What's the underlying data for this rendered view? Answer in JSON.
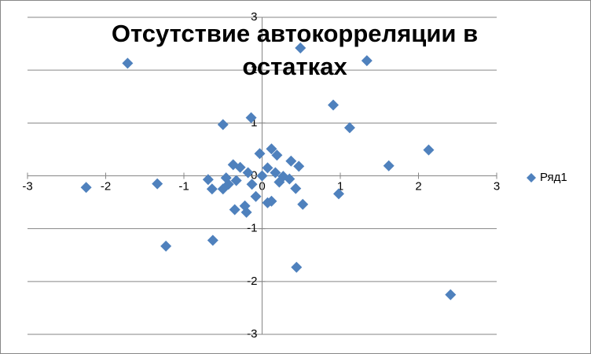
{
  "chart_data": {
    "type": "scatter",
    "title": "Отсутствие автокорреляции в остатках",
    "series": [
      {
        "name": "Ряд1",
        "color": "#4f81bd",
        "x": [
          -1.72,
          0.49,
          1.34,
          0.91,
          1.12,
          -0.5,
          -0.14,
          2.13,
          1.62,
          -2.25,
          -1.34,
          0.98,
          0.52,
          -1.23,
          -0.63,
          0.44,
          2.41,
          -0.69,
          -0.64,
          -0.5,
          -0.46,
          -0.37,
          -0.28,
          -0.35,
          -0.2,
          -0.22,
          -0.03,
          0.12,
          0.19,
          0.37,
          0.47,
          0.43,
          0.22,
          0.07,
          -0.13,
          -0.08,
          0.12,
          0.07,
          0.27,
          0.35,
          0.17,
          -0.33,
          -0.18,
          0,
          -0.43
        ],
        "values": [
          2.13,
          2.42,
          2.18,
          1.34,
          0.91,
          0.97,
          1.1,
          0.49,
          0.19,
          -0.22,
          -0.15,
          -0.34,
          -0.54,
          -1.33,
          -1.22,
          -1.73,
          -2.25,
          -0.07,
          -0.25,
          -0.25,
          -0.04,
          0.21,
          0.16,
          -0.64,
          -0.69,
          -0.57,
          0.42,
          0.51,
          0.39,
          0.28,
          0.18,
          -0.24,
          -0.12,
          0.15,
          -0.16,
          -0.39,
          -0.48,
          -0.51,
          -0.01,
          -0.06,
          0.06,
          -0.09,
          0.06,
          0,
          -0.16
        ]
      }
    ],
    "xlim": [
      -3,
      3
    ],
    "xticks": [
      -3,
      -2,
      -1,
      0,
      1,
      2,
      3
    ],
    "ylim": [
      -3,
      3
    ],
    "yticks": [
      -3,
      -2,
      -1,
      0,
      1,
      2,
      3
    ],
    "grid": true,
    "legend": "right"
  }
}
